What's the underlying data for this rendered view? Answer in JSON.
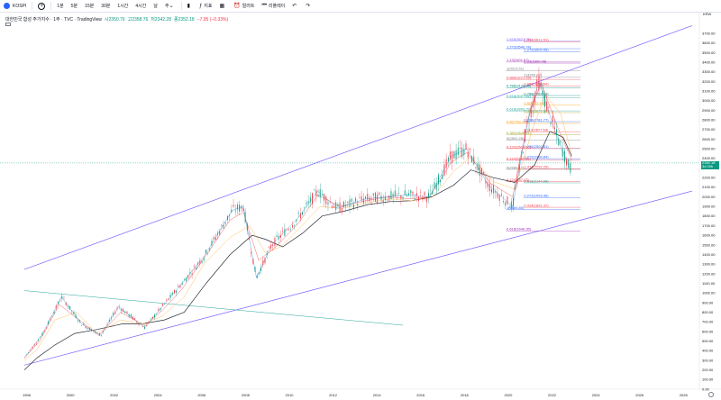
{
  "toolbar": {
    "symbol": "KOSPI",
    "intervals": [
      "1분",
      "5분",
      "15분",
      "30분",
      "1시간",
      "4시간",
      "날",
      "주"
    ],
    "indicators_label": "지표",
    "alert_label": "얼러트",
    "replay_label": "리플레이"
  },
  "legend": {
    "title": "대한민국 합성 주가지수 · 1주 · TVC · TradingView",
    "open": "시2350.76",
    "high": "고2358.76",
    "low": "저2342.28",
    "close": "종2352.18",
    "change": "−7.95 (−0.33%)"
  },
  "colors": {
    "channel": "#7b61ff",
    "trendline": "#26a69a",
    "candle_up": "#089981",
    "candle_down": "#f23645",
    "ma_black": "#131722",
    "ma_orange": "#ffb74d",
    "ma_red": "#ef5350",
    "ma_blue": "#42a5f5"
  },
  "chart_data": {
    "type": "line",
    "price_axis": {
      "min": 0,
      "max": 3700,
      "step": 100,
      "currency_label": "KRW"
    },
    "time_axis": {
      "labels": [
        "1998",
        "2000",
        "2002",
        "2004",
        "2006",
        "2008",
        "2010",
        "2012",
        "2014",
        "2016",
        "2018",
        "2020",
        "2022",
        "2024",
        "2026",
        "2028"
      ]
    },
    "last_price": {
      "value": "2352.18",
      "countdown": "3d 20h"
    },
    "series": [
      {
        "color": "#131722",
        "points": [
          [
            1997.9,
            200
          ],
          [
            1998.5,
            330
          ],
          [
            1999.3,
            460
          ],
          [
            2000.2,
            580
          ],
          [
            2001.2,
            620
          ],
          [
            2002.4,
            680
          ],
          [
            2003.3,
            680
          ],
          [
            2004.3,
            720
          ],
          [
            2005.2,
            800
          ],
          [
            2006.2,
            1100
          ],
          [
            2007.3,
            1400
          ],
          [
            2008.3,
            1600
          ],
          [
            2008.9,
            1560
          ],
          [
            2009.7,
            1480
          ],
          [
            2010.6,
            1620
          ],
          [
            2011.5,
            1800
          ],
          [
            2012.5,
            1850
          ],
          [
            2013.6,
            1920
          ],
          [
            2014.6,
            1950
          ],
          [
            2015.6,
            1960
          ],
          [
            2016.5,
            2000
          ],
          [
            2017.5,
            2120
          ],
          [
            2018.3,
            2280
          ],
          [
            2019.3,
            2200
          ],
          [
            2020.3,
            2150
          ],
          [
            2021.2,
            2330
          ],
          [
            2021.9,
            2680
          ],
          [
            2022.5,
            2620
          ],
          [
            2022.9,
            2420
          ]
        ]
      },
      {
        "color": "#ffb74d",
        "points": [
          [
            1997.9,
            300
          ],
          [
            1998.5,
            420
          ],
          [
            1999.3,
            720
          ],
          [
            2000.3,
            800
          ],
          [
            2001.2,
            580
          ],
          [
            2002.3,
            720
          ],
          [
            2003.3,
            680
          ],
          [
            2004.2,
            760
          ],
          [
            2005.2,
            960
          ],
          [
            2006.1,
            1300
          ],
          [
            2007.3,
            1580
          ],
          [
            2008.2,
            1700
          ],
          [
            2008.9,
            1420
          ],
          [
            2009.6,
            1480
          ],
          [
            2010.5,
            1680
          ],
          [
            2011.4,
            1900
          ],
          [
            2012.4,
            1880
          ],
          [
            2013.6,
            1940
          ],
          [
            2014.6,
            1980
          ],
          [
            2015.6,
            1960
          ],
          [
            2016.5,
            1990
          ],
          [
            2017.5,
            2260
          ],
          [
            2018.3,
            2420
          ],
          [
            2019.3,
            2160
          ],
          [
            2020.3,
            2080
          ],
          [
            2021.1,
            2700
          ],
          [
            2021.7,
            3060
          ],
          [
            2022.4,
            2860
          ],
          [
            2022.9,
            2440
          ]
        ]
      },
      {
        "color": "#ef5350",
        "points": [
          [
            1997.9,
            320
          ],
          [
            1998.6,
            500
          ],
          [
            1999.5,
            880
          ],
          [
            2000.4,
            720
          ],
          [
            2001.3,
            560
          ],
          [
            2002.3,
            800
          ],
          [
            2003.4,
            660
          ],
          [
            2004.2,
            820
          ],
          [
            2005.1,
            1040
          ],
          [
            2006.1,
            1360
          ],
          [
            2007.3,
            1760
          ],
          [
            2007.9,
            1840
          ],
          [
            2008.6,
            1340
          ],
          [
            2009.3,
            1460
          ],
          [
            2010.4,
            1720
          ],
          [
            2011.3,
            2020
          ],
          [
            2012.3,
            1900
          ],
          [
            2013.5,
            1960
          ],
          [
            2014.5,
            2000
          ],
          [
            2015.5,
            1980
          ],
          [
            2016.4,
            2000
          ],
          [
            2017.4,
            2360
          ],
          [
            2018.1,
            2460
          ],
          [
            2019.2,
            2140
          ],
          [
            2020.2,
            2000
          ],
          [
            2021.0,
            2900
          ],
          [
            2021.5,
            3180
          ],
          [
            2022.3,
            2700
          ],
          [
            2022.9,
            2380
          ]
        ]
      },
      {
        "color": "#42a5f5",
        "points": [
          [
            1997.9,
            330
          ],
          [
            1998.7,
            560
          ],
          [
            1999.6,
            960
          ],
          [
            2000.5,
            680
          ],
          [
            2001.4,
            560
          ],
          [
            2002.2,
            860
          ],
          [
            2003.4,
            640
          ],
          [
            2004.2,
            860
          ],
          [
            2005.1,
            1100
          ],
          [
            2006.1,
            1380
          ],
          [
            2007.4,
            1860
          ],
          [
            2007.9,
            1900
          ],
          [
            2008.5,
            1160
          ],
          [
            2009.2,
            1500
          ],
          [
            2010.4,
            1780
          ],
          [
            2011.3,
            2060
          ],
          [
            2012.2,
            1880
          ],
          [
            2013.5,
            1980
          ],
          [
            2014.5,
            2000
          ],
          [
            2015.4,
            2020
          ],
          [
            2016.4,
            2000
          ],
          [
            2017.4,
            2420
          ],
          [
            2018.1,
            2500
          ],
          [
            2019.1,
            2120
          ],
          [
            2020.2,
            1900
          ],
          [
            2020.9,
            2800
          ],
          [
            2021.4,
            3200
          ],
          [
            2022.2,
            2640
          ],
          [
            2022.8,
            2300
          ]
        ]
      }
    ],
    "channel_lines": [
      {
        "from": [
          1997.9,
          1245
        ],
        "to": [
          2028.4,
          3780
        ]
      },
      {
        "from": [
          1997.9,
          250
        ],
        "to": [
          2028.4,
          2060
        ]
      }
    ],
    "trendline": {
      "from": [
        1997.9,
        1025
      ],
      "to": [
        2015.2,
        665
      ]
    },
    "fib_left": {
      "levels": [
        {
          "label": "1.618(3621.75)",
          "value": 3621.75,
          "color": "#7b61ff"
        },
        {
          "label": "1.414(3612.51)",
          "value": 3612.51,
          "color": "#f23645"
        },
        {
          "label": "1.272(3540.74)",
          "value": 3540.74,
          "color": "#2962ff"
        },
        {
          "label": "1.272(3509.95)",
          "value": 3509.95,
          "color": "#2962ff"
        },
        {
          "label": "1.13(3401.67)",
          "value": 3401.67,
          "color": "#9c27b0"
        },
        {
          "label": "1.13(3390.48)",
          "value": 3390.48,
          "color": "#9c27b0"
        },
        {
          "label": "1(3313.51)",
          "value": 3313.51,
          "color": "#787b86"
        },
        {
          "label": "1(3248.19)",
          "value": 3248.19,
          "color": "#787b86"
        },
        {
          "label": "0.886(3221.15)",
          "value": 3221.15,
          "color": "#f23645"
        },
        {
          "label": "0.886(3153.94)",
          "value": 3153.94,
          "color": "#f23645"
        },
        {
          "label": "0.786(3134.98)",
          "value": 3134.98,
          "color": "#00897b"
        },
        {
          "label": "0.786(3053.74)",
          "value": 3053.74,
          "color": "#00897b"
        },
        {
          "label": "0.618(3027.81)",
          "value": 3027.81,
          "color": "#26a69a"
        },
        {
          "label": "0.5(2952.49)",
          "value": 2952.49,
          "color": "#ff9800"
        },
        {
          "label": "0.618(2893.29)",
          "value": 2893.29,
          "color": "#26a69a"
        },
        {
          "label": "0.382(2875.58)",
          "value": 2875.58,
          "color": "#9e9d24"
        },
        {
          "label": "0.5(2763.11)",
          "value": 2763.11,
          "color": "#ff9800"
        },
        {
          "label": "0.236(2781.77)",
          "value": 2781.77,
          "color": "#2962ff"
        },
        {
          "label": "0.382(2646.91)",
          "value": 2646.91,
          "color": "#9e9d24"
        },
        {
          "label": "0.114(2677.63)",
          "value": 2677.63,
          "color": "#f23645"
        },
        {
          "label": "0(2591.25)",
          "value": 2591.25,
          "color": "#787b86"
        },
        {
          "label": "0.236(2502.61)",
          "value": 2502.61,
          "color": "#2962ff"
        },
        {
          "label": "0.122(2502.10)",
          "value": 2502.1,
          "color": "#f23645"
        },
        {
          "label": "0.272(2396.84)",
          "value": 2396.84,
          "color": "#2962ff"
        },
        {
          "label": "0.114(2380.56)",
          "value": 2380.56,
          "color": "#f23645"
        },
        {
          "label": "0.414(2292.29)",
          "value": 2292.29,
          "color": "#f23645"
        },
        {
          "label": "0(2286.12)",
          "value": 2286.12,
          "color": "#787b86"
        },
        {
          "label": "0.618(2144.98)",
          "value": 2144.98,
          "color": "#26a69a"
        },
        {
          "label": "0.12(2157.43)",
          "value": 2157.43,
          "color": "#f23645"
        },
        {
          "label": "0.272(1993.36)",
          "value": 1993.36,
          "color": "#2962ff"
        },
        {
          "label": "1(1869.80)",
          "value": 1869.8,
          "color": "#2962ff"
        },
        {
          "label": "0.414(1891.37)",
          "value": 1891.37,
          "color": "#f23645"
        },
        {
          "label": "0.618(1646.35)",
          "value": 1646.35,
          "color": "#9c27b0"
        }
      ]
    }
  }
}
